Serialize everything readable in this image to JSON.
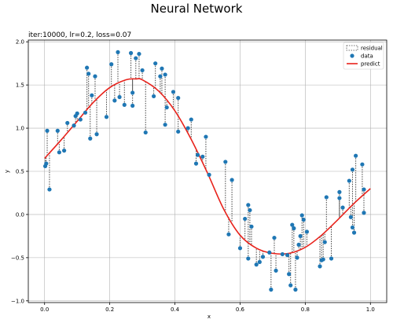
{
  "chart_data": {
    "type": "scatter",
    "suptitle": "Neural Network",
    "title": "iter:10000, lr=0.2, loss=0.07",
    "xlabel": "x",
    "ylabel": "y",
    "xlim": [
      -0.05,
      1.05
    ],
    "ylim": [
      -1.02,
      2.02
    ],
    "xticks": [
      0.0,
      0.2,
      0.4,
      0.6,
      0.8,
      1.0
    ],
    "xtick_labels": [
      "0.0",
      "0.2",
      "0.4",
      "0.6",
      "0.8",
      "1.0"
    ],
    "yticks": [
      -1.0,
      -0.5,
      0.0,
      0.5,
      1.0,
      1.5,
      2.0
    ],
    "ytick_labels": [
      "−1.0",
      "−0.5",
      "0.0",
      "0.5",
      "1.0",
      "1.5",
      "2.0"
    ],
    "grid": true,
    "legend": {
      "position": "top-right",
      "entries": [
        "residual",
        "data",
        "predict"
      ]
    },
    "colors": {
      "data": "#1f77b4",
      "predict": "#e8221b",
      "residual": "#444444",
      "grid": "#b0b0b0"
    },
    "series": [
      {
        "name": "data",
        "points": [
          [
            0.002,
            0.56
          ],
          [
            0.005,
            0.59
          ],
          [
            0.008,
            0.97
          ],
          [
            0.015,
            0.29
          ],
          [
            0.04,
            0.97
          ],
          [
            0.045,
            0.72
          ],
          [
            0.06,
            0.74
          ],
          [
            0.07,
            1.06
          ],
          [
            0.09,
            1.03
          ],
          [
            0.095,
            1.14
          ],
          [
            0.1,
            1.17
          ],
          [
            0.11,
            1.1
          ],
          [
            0.125,
            1.18
          ],
          [
            0.13,
            1.7
          ],
          [
            0.135,
            1.63
          ],
          [
            0.14,
            0.88
          ],
          [
            0.145,
            1.38
          ],
          [
            0.155,
            1.6
          ],
          [
            0.16,
            0.93
          ],
          [
            0.19,
            1.13
          ],
          [
            0.205,
            1.74
          ],
          [
            0.215,
            1.32
          ],
          [
            0.225,
            1.88
          ],
          [
            0.23,
            1.36
          ],
          [
            0.245,
            1.27
          ],
          [
            0.265,
            1.87
          ],
          [
            0.27,
            1.41
          ],
          [
            0.27,
            1.26
          ],
          [
            0.28,
            1.81
          ],
          [
            0.29,
            1.86
          ],
          [
            0.3,
            1.67
          ],
          [
            0.31,
            0.95
          ],
          [
            0.335,
            1.37
          ],
          [
            0.34,
            1.75
          ],
          [
            0.355,
            1.6
          ],
          [
            0.36,
            1.69
          ],
          [
            0.37,
            1.62
          ],
          [
            0.37,
            1.04
          ],
          [
            0.375,
            1.24
          ],
          [
            0.395,
            1.42
          ],
          [
            0.41,
            1.35
          ],
          [
            0.41,
            0.96
          ],
          [
            0.44,
            1.0
          ],
          [
            0.45,
            1.1
          ],
          [
            0.465,
            0.59
          ],
          [
            0.47,
            0.69
          ],
          [
            0.485,
            0.67
          ],
          [
            0.495,
            0.9
          ],
          [
            0.505,
            0.46
          ],
          [
            0.555,
            0.61
          ],
          [
            0.565,
            -0.23
          ],
          [
            0.575,
            0.4
          ],
          [
            0.6,
            -0.39
          ],
          [
            0.615,
            -0.05
          ],
          [
            0.625,
            0.11
          ],
          [
            0.625,
            -0.51
          ],
          [
            0.63,
            0.05
          ],
          [
            0.635,
            -0.14
          ],
          [
            0.65,
            -0.58
          ],
          [
            0.66,
            -0.55
          ],
          [
            0.67,
            -0.49
          ],
          [
            0.69,
            -0.44
          ],
          [
            0.695,
            -0.87
          ],
          [
            0.705,
            -0.27
          ],
          [
            0.71,
            -0.65
          ],
          [
            0.73,
            -0.46
          ],
          [
            0.745,
            -0.47
          ],
          [
            0.75,
            -0.69
          ],
          [
            0.755,
            -0.82
          ],
          [
            0.76,
            -0.12
          ],
          [
            0.765,
            -0.16
          ],
          [
            0.77,
            -0.87
          ],
          [
            0.775,
            -0.5
          ],
          [
            0.78,
            -0.35
          ],
          [
            0.785,
            -0.25
          ],
          [
            0.79,
            -0.01
          ],
          [
            0.795,
            -0.06
          ],
          [
            0.805,
            -0.2
          ],
          [
            0.845,
            -0.6
          ],
          [
            0.85,
            -0.53
          ],
          [
            0.855,
            -0.52
          ],
          [
            0.86,
            -0.32
          ],
          [
            0.865,
            0.2
          ],
          [
            0.88,
            -0.51
          ],
          [
            0.905,
            0.26
          ],
          [
            0.905,
            0.19
          ],
          [
            0.915,
            0.08
          ],
          [
            0.935,
            0.39
          ],
          [
            0.94,
            -0.03
          ],
          [
            0.945,
            0.52
          ],
          [
            0.945,
            -0.15
          ],
          [
            0.95,
            -0.21
          ],
          [
            0.955,
            0.68
          ],
          [
            0.975,
            0.58
          ],
          [
            0.98,
            0.29
          ],
          [
            0.98,
            0.02
          ]
        ]
      },
      {
        "name": "predict",
        "points": [
          [
            0.0,
            0.65
          ],
          [
            0.05,
            0.86
          ],
          [
            0.1,
            1.08
          ],
          [
            0.15,
            1.3
          ],
          [
            0.2,
            1.47
          ],
          [
            0.25,
            1.56
          ],
          [
            0.28,
            1.57
          ],
          [
            0.3,
            1.56
          ],
          [
            0.35,
            1.43
          ],
          [
            0.4,
            1.2
          ],
          [
            0.45,
            0.87
          ],
          [
            0.5,
            0.48
          ],
          [
            0.55,
            0.06
          ],
          [
            0.6,
            -0.24
          ],
          [
            0.65,
            -0.39
          ],
          [
            0.7,
            -0.45
          ],
          [
            0.75,
            -0.45
          ],
          [
            0.8,
            -0.38
          ],
          [
            0.85,
            -0.24
          ],
          [
            0.9,
            -0.06
          ],
          [
            0.95,
            0.13
          ],
          [
            1.0,
            0.3
          ]
        ]
      }
    ]
  }
}
